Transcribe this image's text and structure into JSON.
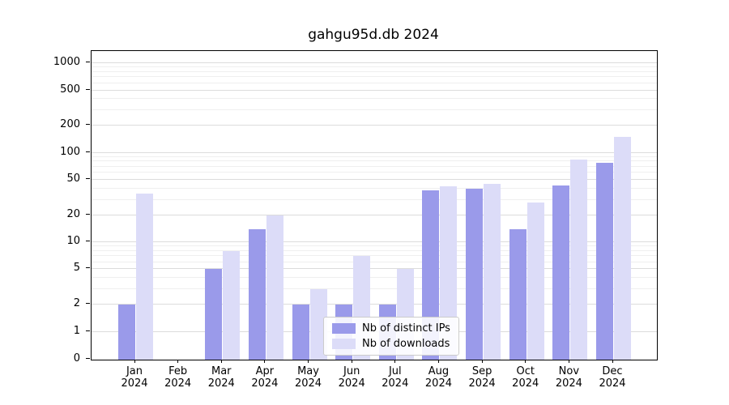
{
  "chart_data": {
    "type": "bar",
    "title": "gahgu95d.db 2024",
    "year": "2024",
    "categories": [
      "Jan",
      "Feb",
      "Mar",
      "Apr",
      "May",
      "Jun",
      "Jul",
      "Aug",
      "Sep",
      "Oct",
      "Nov",
      "Dec"
    ],
    "series": [
      {
        "name": "Nb of distinct IPs",
        "color": "#9a9aea",
        "values": [
          2,
          0,
          5,
          14,
          2,
          2,
          2,
          38,
          40,
          14,
          43,
          78
        ]
      },
      {
        "name": "Nb of downloads",
        "color": "#dcdcf8",
        "values": [
          35,
          0,
          8,
          20,
          3,
          7,
          5,
          42,
          45,
          28,
          85,
          150
        ]
      }
    ],
    "yscale": "symlog",
    "ylim": [
      0,
      1500
    ],
    "yticks": [
      0,
      1,
      2,
      5,
      10,
      20,
      50,
      100,
      200,
      500,
      1000
    ],
    "yticks_minor": [
      3,
      4,
      6,
      7,
      8,
      9,
      30,
      40,
      60,
      70,
      80,
      90,
      300,
      400,
      600,
      700,
      800,
      900
    ],
    "grid": true,
    "legend_position": "lower center"
  }
}
